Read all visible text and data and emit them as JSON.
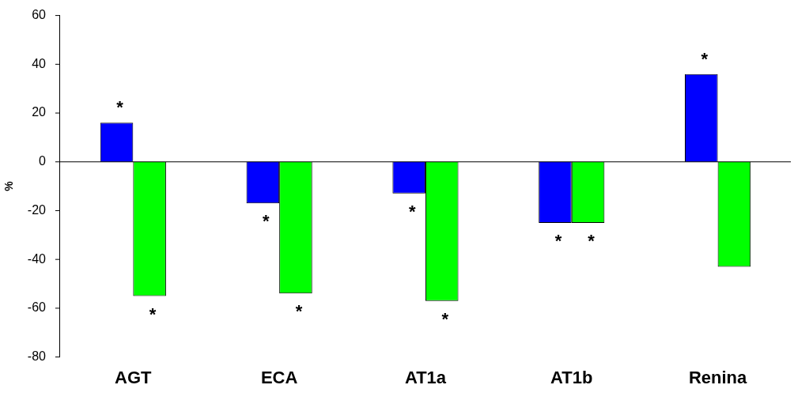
{
  "chart_data": {
    "type": "bar",
    "ylabel": "%",
    "categories": [
      "AGT",
      "ECA",
      "AT1a",
      "AT1b",
      "Renina"
    ],
    "series": [
      {
        "color": "#0000ff",
        "values": [
          16,
          -17,
          -13,
          -25,
          36
        ]
      },
      {
        "color": "#00ff00",
        "values": [
          -55,
          -54,
          -57,
          -25,
          -43
        ]
      }
    ],
    "ylim": [
      -80,
      60
    ],
    "yticks": [
      -80,
      -60,
      -40,
      -20,
      0,
      20,
      40,
      60
    ],
    "grid": false,
    "legend": false,
    "ref_lines": [
      {
        "axis": "y",
        "value": 0,
        "color": "#000000"
      }
    ],
    "annotations": [
      {
        "text": "*",
        "x": "AGT",
        "y": 16
      },
      {
        "text": "*",
        "x": "AGT",
        "y": -55
      },
      {
        "text": "*",
        "x": "ECA",
        "y": -17
      },
      {
        "text": "*",
        "x": "ECA",
        "y": -54
      },
      {
        "text": "*",
        "x": "AT1a",
        "y": -13
      },
      {
        "text": "*",
        "x": "AT1a",
        "y": -57
      },
      {
        "text": "*",
        "x": "AT1b",
        "y": -25
      },
      {
        "text": "*",
        "x": "AT1b",
        "y": -25
      },
      {
        "text": "*",
        "x": "Renina",
        "y": 36
      }
    ]
  }
}
